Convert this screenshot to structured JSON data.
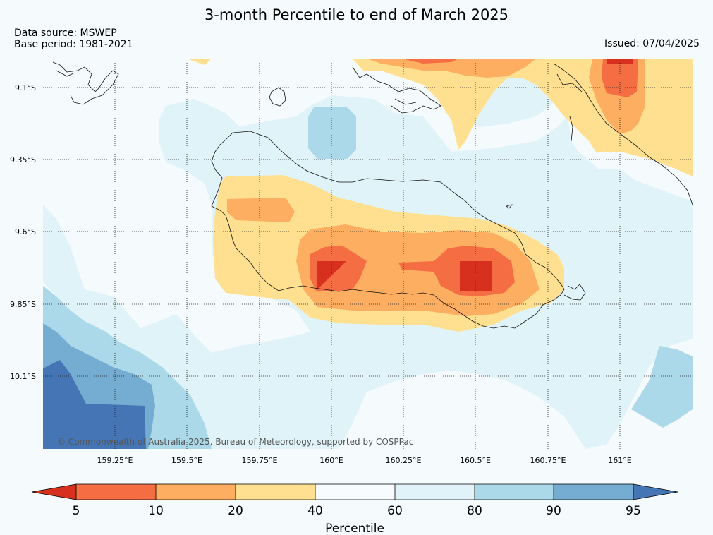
{
  "header": {
    "title": "3-month Percentile to end of March 2025",
    "source": "Data source: MSWEP",
    "base_period": "Base period: 1981-2021",
    "issued": "Issued: 07/04/2025"
  },
  "map": {
    "lat_labels": [
      "9.1°S",
      "9.35°S",
      "9.6°S",
      "9.85°S",
      "10.1°S"
    ],
    "lon_labels": [
      "159.25°E",
      "159.5°E",
      "159.75°E",
      "160°E",
      "160.25°E",
      "160.5°E",
      "160.75°E",
      "161°E"
    ],
    "copyright": "© Commonwealth of Australia 2025, Bureau of Meteorology, supported by COSPPac"
  },
  "colorbar": {
    "title": "Percentile",
    "ticks": [
      "5",
      "10",
      "20",
      "40",
      "60",
      "80",
      "90",
      "95"
    ],
    "colors": {
      "below_5": "#d7301f",
      "5_10": "#f46d43",
      "10_20": "#fdae61",
      "20_40": "#fee090",
      "40_60": "#f7fbfd",
      "60_80": "#e0f3f8",
      "80_90": "#abd9e9",
      "90_95": "#74add1",
      "above_95": "#4575b4"
    }
  }
}
